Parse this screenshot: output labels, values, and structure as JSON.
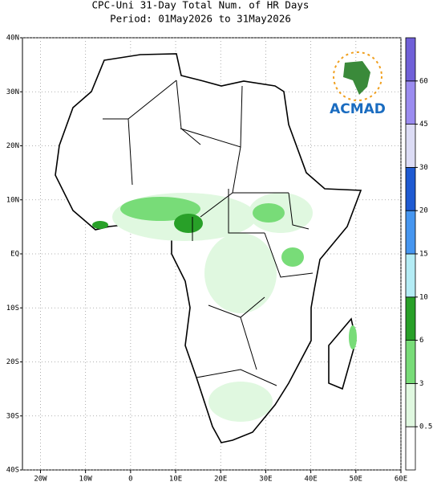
{
  "title": "CPC-Uni 31-Day Total Num. of HR Days",
  "subtitle": "Period: 01May2026 to 31May2026",
  "logo_text": "ACMAD",
  "map": {
    "xlim": [
      -24,
      60
    ],
    "ylim": [
      -40,
      40
    ],
    "lonticks": [
      {
        "value": -20,
        "label": "20W"
      },
      {
        "value": -10,
        "label": "10W"
      },
      0,
      {
        "value": 10,
        "label": "10E"
      },
      {
        "value": 20,
        "label": "20E"
      },
      {
        "value": 30,
        "label": "30E"
      },
      {
        "value": 40,
        "label": "40E"
      },
      {
        "value": 50,
        "label": "50E"
      },
      {
        "value": 60,
        "label": "60E"
      }
    ],
    "latticks": [
      {
        "value": 40,
        "label": "40N"
      },
      {
        "value": 30,
        "label": "30N"
      },
      {
        "value": 20,
        "label": "20N"
      },
      {
        "value": 10,
        "label": "10N"
      },
      {
        "value": 0,
        "label": "EQ"
      },
      {
        "value": -10,
        "label": "10S"
      },
      {
        "value": -20,
        "label": "20S"
      },
      {
        "value": -30,
        "label": "30S"
      },
      {
        "value": -40,
        "label": "40S"
      }
    ]
  },
  "colorbar": {
    "levels": [
      0.5,
      3,
      6,
      10,
      15,
      20,
      30,
      45,
      60
    ],
    "colors": [
      "#ffffff",
      "#e0f8e0",
      "#78dc78",
      "#28a028",
      "#b4ecf5",
      "#4696f0",
      "#1e5ad2",
      "#dcdcf5",
      "#9b8cf0",
      "#7060d8"
    ]
  }
}
